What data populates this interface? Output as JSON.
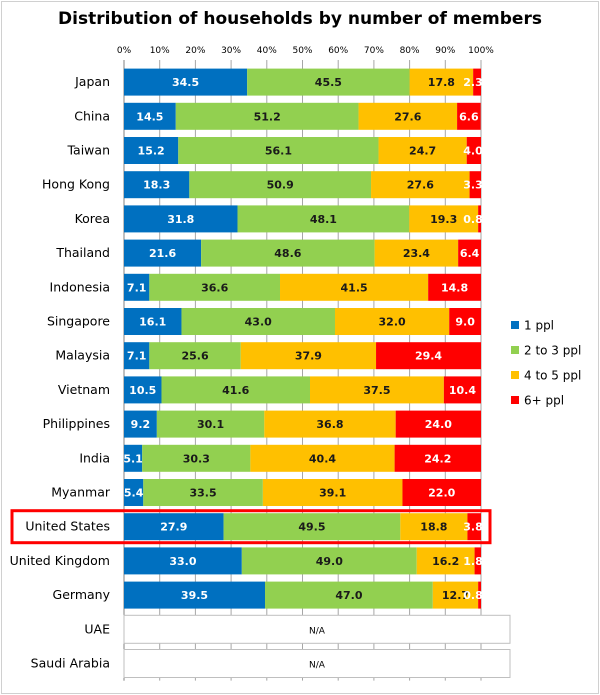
{
  "chart_data": {
    "type": "bar",
    "orientation": "horizontal",
    "stacked": true,
    "title": "Distribution of households by number of members",
    "xlim": [
      0,
      100
    ],
    "x_tick_labels": [
      "0%",
      "10%",
      "20%",
      "30%",
      "40%",
      "50%",
      "60%",
      "70%",
      "80%",
      "90%",
      "100%"
    ],
    "grid": true,
    "legend_position": "right",
    "categories": [
      "Japan",
      "China",
      "Taiwan",
      "Hong Kong",
      "Korea",
      "Thailand",
      "Indonesia",
      "Singapore",
      "Malaysia",
      "Vietnam",
      "Philippines",
      "India",
      "Myanmar",
      "United States",
      "United Kingdom",
      "Germany",
      "UAE",
      "Saudi Arabia"
    ],
    "series": [
      {
        "name": "1 ppl",
        "color": "#0070C0",
        "values": [
          34.5,
          14.5,
          15.2,
          18.3,
          31.8,
          21.6,
          7.1,
          16.1,
          7.1,
          10.5,
          9.2,
          5.1,
          5.4,
          27.9,
          33.0,
          39.5,
          null,
          null
        ]
      },
      {
        "name": "2 to 3  ppl",
        "color": "#92D050",
        "values": [
          45.5,
          51.2,
          56.1,
          50.9,
          48.1,
          48.6,
          36.6,
          43.0,
          25.6,
          41.6,
          30.1,
          30.3,
          33.5,
          49.5,
          49.0,
          47.0,
          null,
          null
        ]
      },
      {
        "name": "4 to 5  ppl",
        "color": "#FFC000",
        "values": [
          17.8,
          27.6,
          24.7,
          27.6,
          19.3,
          23.4,
          41.5,
          32.0,
          37.9,
          37.5,
          36.8,
          40.4,
          39.1,
          18.8,
          16.2,
          12.7,
          null,
          null
        ]
      },
      {
        "name": "6+  ppl",
        "color": "#FF0000",
        "values": [
          2.3,
          6.6,
          4.0,
          3.3,
          0.8,
          6.4,
          14.8,
          9.0,
          29.4,
          10.4,
          24.0,
          24.2,
          22.0,
          3.8,
          1.8,
          0.8,
          null,
          null
        ]
      }
    ],
    "na_label": "N/A",
    "highlighted_category": "United States",
    "highlight_color": "#FF0000"
  }
}
